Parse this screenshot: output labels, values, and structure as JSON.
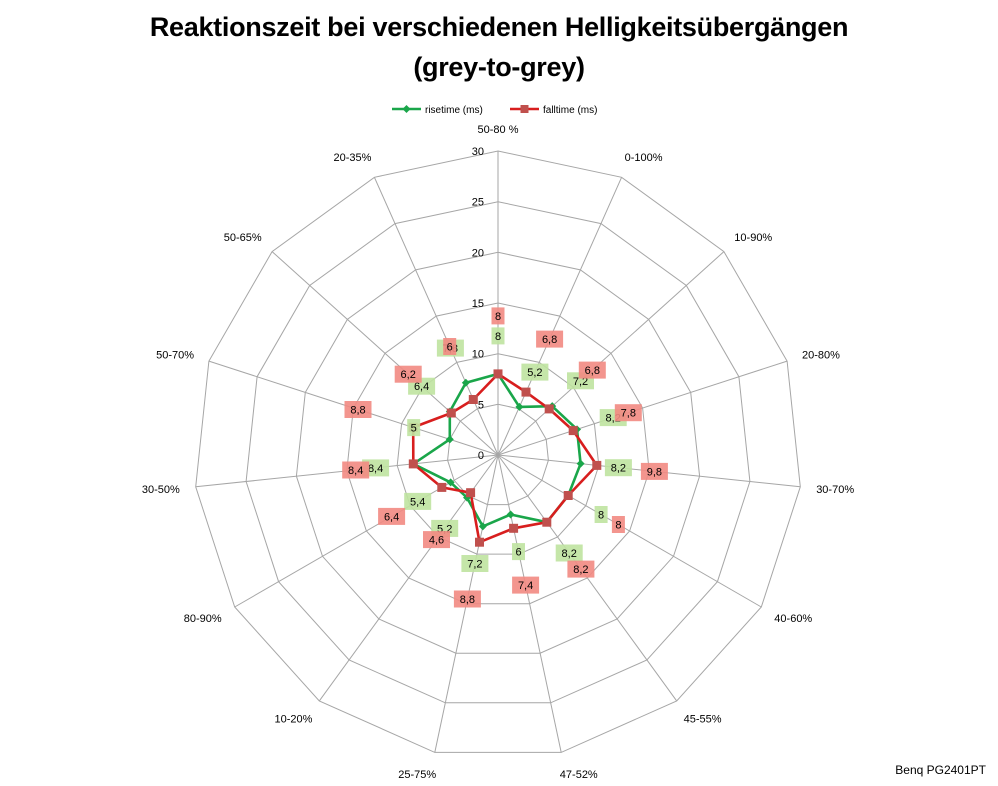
{
  "title": "Reaktionszeit bei verschiedenen Helligkeitsübergängen",
  "subtitle": "(grey-to-grey)",
  "footer": "Benq PG2401PT",
  "colors": {
    "risetime": "#1aa64a",
    "falltime": "#d81e1e",
    "risetime_label_bg": "#bfe3a0",
    "falltime_label_bg": "#f28a82",
    "grid": "#a6a6a6"
  },
  "chart_data": {
    "type": "radar",
    "title": "Reaktionszeit bei verschiedenen Helligkeitsübergängen",
    "subtitle": "(grey-to-grey)",
    "categories": [
      "50-80 %",
      "0-100%",
      "10-90%",
      "20-80%",
      "30-70%",
      "40-60%",
      "45-55%",
      "47-52%",
      "25-75%",
      "10-20%",
      "80-90%",
      "30-50%",
      "50-70%",
      "50-65%",
      "20-35%"
    ],
    "rlim": [
      0,
      30
    ],
    "ticks": [
      0,
      5,
      10,
      15,
      20,
      25,
      30
    ],
    "grid": true,
    "legend_position": "top",
    "series": [
      {
        "name": "risetime (ms)",
        "values": [
          8,
          5.2,
          7.2,
          8.2,
          8.2,
          8,
          8.2,
          6,
          7.2,
          5.2,
          5.4,
          8.4,
          5,
          6.4,
          7.8
        ],
        "labels": [
          "8",
          "5,2",
          "7,2",
          "8,2",
          "8,2",
          "8",
          "8,2",
          "6",
          "7,2",
          "5,2",
          "5,4",
          "8,4",
          "5",
          "6,4",
          "7,8"
        ]
      },
      {
        "name": "falltime (ms)",
        "values": [
          8,
          6.8,
          6.8,
          7.8,
          9.8,
          8,
          8.2,
          7.4,
          8.8,
          4.6,
          6.4,
          8.4,
          8.8,
          6.2,
          6
        ],
        "labels": [
          "8",
          "6,8",
          "6,8",
          "7,8",
          "9,8",
          "8",
          "8,2",
          "7,4",
          "8,8",
          "4,6",
          "6,4",
          "8,4",
          "8,8",
          "6,2",
          "6"
        ]
      }
    ]
  }
}
